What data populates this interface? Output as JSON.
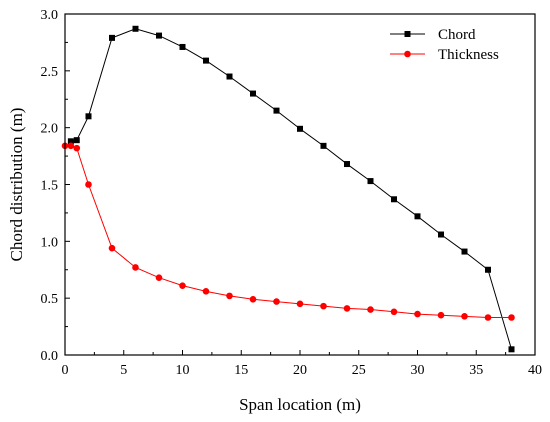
{
  "chart_data": {
    "type": "line",
    "xlabel": "Span location (m)",
    "ylabel": "Chord distribution (m)",
    "xlim": [
      0,
      40
    ],
    "ylim": [
      0.0,
      3.0
    ],
    "x_ticks": [
      "0",
      "5",
      "10",
      "15",
      "20",
      "25",
      "30",
      "35",
      "40"
    ],
    "y_ticks": [
      "0.0",
      "0.5",
      "1.0",
      "1.5",
      "2.0",
      "2.5",
      "3.0"
    ],
    "grid": false,
    "legend_position": "top-right",
    "series": [
      {
        "name": "Chord",
        "color": "#000000",
        "marker": "square",
        "x": [
          0.5,
          1,
          2,
          4,
          6,
          8,
          10,
          12,
          14,
          16,
          18,
          20,
          22,
          24,
          26,
          28,
          30,
          32,
          34,
          36,
          38
        ],
        "y": [
          1.88,
          1.89,
          2.1,
          2.79,
          2.87,
          2.81,
          2.71,
          2.59,
          2.45,
          2.3,
          2.15,
          1.99,
          1.84,
          1.68,
          1.53,
          1.37,
          1.22,
          1.06,
          0.91,
          0.75,
          0.05
        ]
      },
      {
        "name": "Thickness",
        "color": "#ff0000",
        "marker": "circle",
        "x": [
          0,
          0.5,
          1,
          2,
          4,
          6,
          8,
          10,
          12,
          14,
          16,
          18,
          20,
          22,
          24,
          26,
          28,
          30,
          32,
          34,
          36,
          38
        ],
        "y": [
          1.84,
          1.84,
          1.82,
          1.5,
          0.94,
          0.77,
          0.68,
          0.61,
          0.56,
          0.52,
          0.49,
          0.47,
          0.45,
          0.43,
          0.41,
          0.4,
          0.38,
          0.36,
          0.35,
          0.34,
          0.33,
          0.33
        ]
      }
    ]
  }
}
